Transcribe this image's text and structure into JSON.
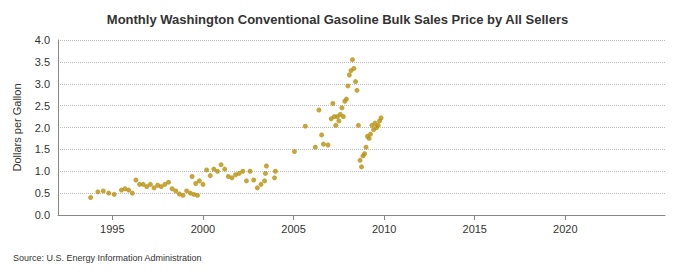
{
  "chart_data": {
    "type": "scatter",
    "title": "Monthly Washington Conventional Gasoline Bulk Sales Price by All Sellers",
    "y_label": "Dollars per Gallon",
    "source": "Source: U.S. Energy Information Administration",
    "color": "#b8900a",
    "marker": "circle",
    "grid": true,
    "xlim": [
      1992,
      2025.5
    ],
    "xticks": [
      1995,
      2000,
      2005,
      2010,
      2015,
      2020
    ],
    "ylim": [
      0,
      4
    ],
    "yticks": [
      {
        "value": 0,
        "label": "0.0"
      },
      0.5,
      {
        "value": 1,
        "label": "1.0"
      },
      1.5,
      {
        "value": 2,
        "label": "2.0"
      },
      2.5,
      {
        "value": 3,
        "label": "3.0"
      },
      3.5,
      {
        "value": 4,
        "label": "4.0"
      }
    ],
    "x": [
      1993.8,
      1994.2,
      1994.5,
      1994.8,
      1995.1,
      1995.5,
      1995.7,
      1995.9,
      1996.1,
      1996.3,
      1996.5,
      1996.7,
      1996.9,
      1997.1,
      1997.3,
      1997.5,
      1997.7,
      1997.9,
      1998.1,
      1998.3,
      1998.5,
      1998.7,
      1998.9,
      1999.1,
      1999.3,
      1999.5,
      1999.7,
      1999.4,
      1999.6,
      1999.8,
      2000.0,
      2000.2,
      2000.4,
      2000.6,
      2000.8,
      2001.0,
      2001.2,
      2001.4,
      2001.6,
      2001.8,
      2002.0,
      2002.2,
      2002.4,
      2002.6,
      2002.8,
      2003.0,
      2003.2,
      2003.4,
      2003.45,
      2003.5,
      2003.95,
      2004.0,
      2005.05,
      2005.65,
      2006.2,
      2006.4,
      2006.55,
      2006.65,
      2006.9,
      2007.08,
      2007.17,
      2007.25,
      2007.33,
      2007.42,
      2007.5,
      2007.58,
      2007.67,
      2007.75,
      2007.83,
      2007.92,
      2008.0,
      2008.08,
      2008.17,
      2008.25,
      2008.33,
      2008.42,
      2008.5,
      2008.58,
      2008.67,
      2008.75,
      2008.83,
      2008.92,
      2009.0,
      2009.08,
      2009.17,
      2009.25,
      2009.33,
      2009.42,
      2009.5,
      2009.58,
      2009.67,
      2009.75,
      2009.83
    ],
    "values": [
      0.4,
      0.53,
      0.55,
      0.5,
      0.47,
      0.57,
      0.6,
      0.57,
      0.5,
      0.8,
      0.7,
      0.7,
      0.65,
      0.7,
      0.62,
      0.68,
      0.65,
      0.7,
      0.75,
      0.6,
      0.55,
      0.48,
      0.45,
      0.55,
      0.5,
      0.47,
      0.45,
      0.88,
      0.72,
      0.78,
      0.7,
      1.03,
      0.9,
      1.05,
      1.0,
      1.15,
      1.05,
      0.88,
      0.85,
      0.92,
      0.95,
      1.0,
      0.78,
      1.0,
      0.8,
      0.62,
      0.7,
      0.78,
      0.95,
      1.12,
      0.85,
      1.0,
      1.45,
      2.03,
      1.55,
      2.4,
      1.83,
      1.62,
      1.6,
      2.2,
      2.55,
      2.25,
      2.05,
      2.25,
      2.15,
      2.3,
      2.45,
      2.25,
      2.6,
      2.65,
      2.95,
      3.2,
      3.3,
      3.55,
      3.35,
      3.05,
      2.85,
      2.05,
      1.25,
      1.1,
      1.35,
      1.4,
      1.55,
      1.8,
      1.75,
      1.85,
      2.05,
      1.95,
      2.1,
      2.0,
      2.05,
      2.15,
      2.22
    ]
  }
}
